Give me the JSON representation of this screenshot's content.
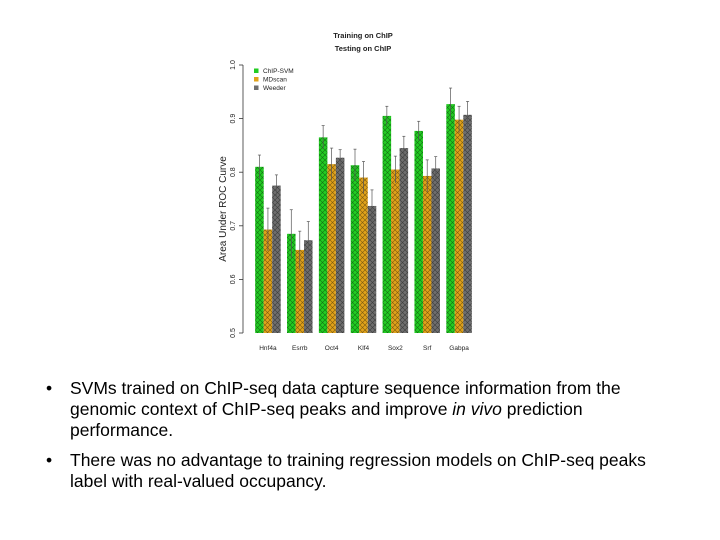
{
  "chart_data": {
    "type": "bar",
    "title": "Training on ChIP",
    "subtitle": "Testing on ChIP",
    "xlabel": "",
    "ylabel": "Area Under ROC Curve",
    "ylim": [
      0.5,
      1.0
    ],
    "yticks": [
      "0.5",
      "0.6",
      "0.7",
      "0.8",
      "0.9",
      "1.0"
    ],
    "categories": [
      "Hnf4a",
      "Esrrb",
      "Oct4",
      "Klf4",
      "Sox2",
      "Srf",
      "Gabpa"
    ],
    "legend_position": "top-left",
    "series": [
      {
        "name": "ChIP-SVM",
        "color": "#22cc22",
        "values": [
          0.81,
          0.685,
          0.865,
          0.813,
          0.905,
          0.877,
          0.927
        ],
        "errors": [
          0.022,
          0.045,
          0.022,
          0.03,
          0.018,
          0.018,
          0.03
        ]
      },
      {
        "name": "MDscan",
        "color": "#e0a21a",
        "values": [
          0.693,
          0.655,
          0.815,
          0.79,
          0.805,
          0.793,
          0.898
        ],
        "errors": [
          0.04,
          0.035,
          0.03,
          0.03,
          0.025,
          0.03,
          0.025
        ]
      },
      {
        "name": "Weeder",
        "color": "#6e6e6e",
        "values": [
          0.775,
          0.673,
          0.827,
          0.737,
          0.845,
          0.807,
          0.907
        ],
        "errors": [
          0.02,
          0.035,
          0.015,
          0.03,
          0.022,
          0.022,
          0.025
        ]
      }
    ]
  },
  "bullets": {
    "item1_part1": "SVMs trained on ChIP-seq data capture sequence information from the genomic context of ChIP-seq peaks and improve ",
    "item1_italic": "in vivo",
    "item1_part2": " prediction performance.",
    "item2": "There was no advantage to training regression models on ChIP-seq peaks label with real-valued occupancy.",
    "bullet_glyph": "•"
  }
}
